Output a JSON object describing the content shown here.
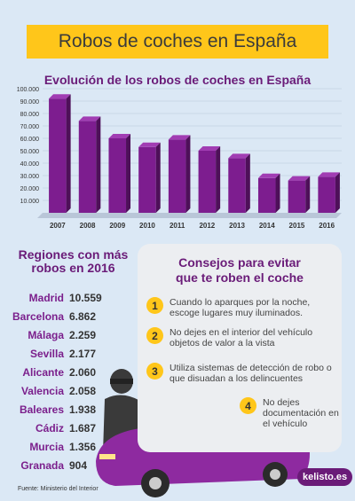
{
  "title": "Robos de coches en España",
  "chart_data": {
    "type": "bar",
    "title": "Evolución de los robos de coches en España",
    "categories": [
      "2007",
      "2008",
      "2009",
      "2010",
      "2011",
      "2012",
      "2013",
      "2014",
      "2015",
      "2016"
    ],
    "values": [
      92000,
      74000,
      60000,
      53000,
      59000,
      50000,
      44000,
      28000,
      26000,
      29000
    ],
    "yticks": [
      "10.000",
      "20.000",
      "30.000",
      "40.000",
      "50.000",
      "60.000",
      "70.000",
      "80.000",
      "90.000",
      "100.000"
    ],
    "ylim": [
      0,
      100000
    ],
    "grid": true,
    "colors": {
      "bar": "#7d1d8f",
      "bar_top": "#a13db3",
      "bar_side": "#4e1059"
    }
  },
  "regions": {
    "title": "Regiones con más robos en 2016",
    "items": [
      {
        "name": "Madrid",
        "value": "10.559"
      },
      {
        "name": "Barcelona",
        "value": "6.862"
      },
      {
        "name": "Málaga",
        "value": "2.259"
      },
      {
        "name": "Sevilla",
        "value": "2.177"
      },
      {
        "name": "Alicante",
        "value": "2.060"
      },
      {
        "name": "Valencia",
        "value": "2.058"
      },
      {
        "name": "Baleares",
        "value": "1.938"
      },
      {
        "name": "Cádiz",
        "value": "1.687"
      },
      {
        "name": "Murcia",
        "value": "1.356"
      },
      {
        "name": "Granada",
        "value": "904"
      }
    ]
  },
  "tips": {
    "title_line1": "Consejos para evitar",
    "title_line2": "que te roben el coche",
    "items": [
      {
        "num": "1",
        "text": "Cuando lo aparques por la noche, escoge lugares muy iluminados."
      },
      {
        "num": "2",
        "text": "No dejes en el interior del vehículo objetos de valor a la vista"
      },
      {
        "num": "3",
        "text": "Utiliza sistemas de detección de robo o que disuadan a los delincuentes"
      },
      {
        "num": "4",
        "text": "No dejes documentación en el vehículo"
      }
    ]
  },
  "source": "Fuente: Ministerio del Interior",
  "logo": "kelisto.es",
  "colors": {
    "accent": "#ffc61a",
    "purple": "#7d1d8f",
    "background": "#dbe8f5"
  }
}
